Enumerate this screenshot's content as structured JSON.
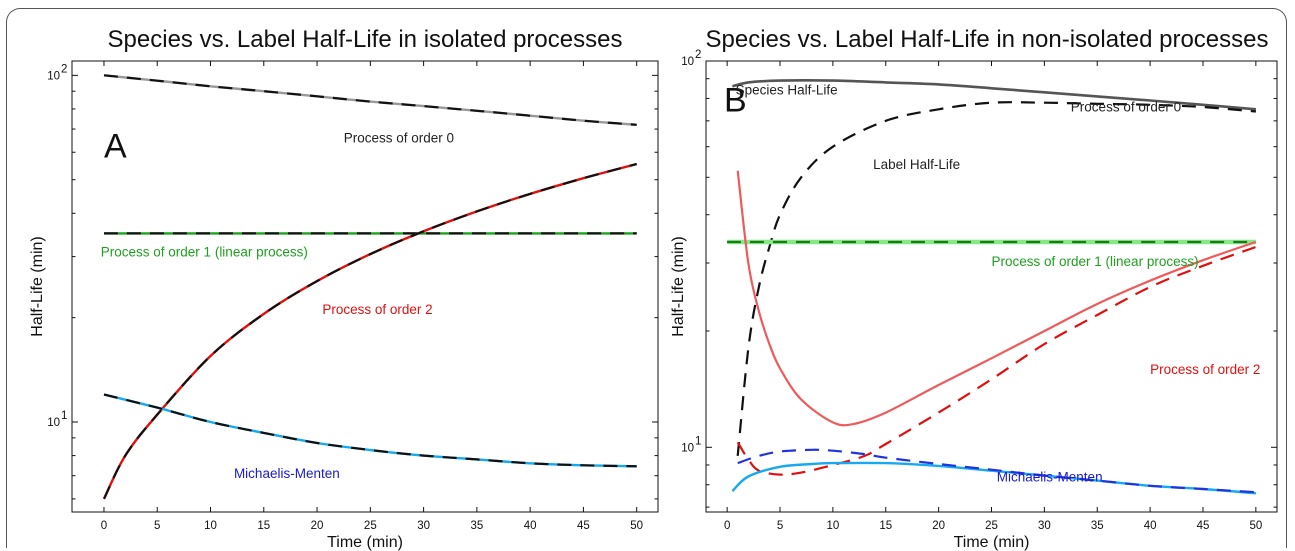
{
  "chart_data": [
    {
      "type": "line",
      "panel": "A",
      "title": "Species vs. Label Half-Life in isolated processes",
      "xlabel": "Time (min)",
      "ylabel": "Half-Life (min)",
      "xlim": [
        -3,
        52
      ],
      "ylim": [
        5.5,
        110
      ],
      "yscale": "log",
      "xticks": [
        0,
        5,
        10,
        15,
        20,
        25,
        30,
        35,
        40,
        45,
        50
      ],
      "yticks": [
        {
          "value": 10,
          "label": "10",
          "exp": "1"
        },
        {
          "value": 100,
          "label": "10",
          "exp": "2"
        }
      ],
      "series": [
        {
          "key": "o0_species",
          "color": "#999999",
          "dash": "",
          "width": 2.4,
          "x": [
            0,
            5,
            10,
            15,
            20,
            25,
            30,
            35,
            40,
            45,
            50
          ],
          "y": [
            100,
            96.5,
            93,
            90,
            87,
            84,
            81.5,
            79,
            76.5,
            74,
            72
          ]
        },
        {
          "key": "o0_label",
          "color": "#111111",
          "dash": "14,9",
          "width": 2.2,
          "x": [
            0,
            5,
            10,
            15,
            20,
            25,
            30,
            35,
            40,
            45,
            50
          ],
          "y": [
            100,
            96.5,
            93,
            90,
            87,
            84,
            81.5,
            79,
            76.5,
            74,
            72
          ]
        },
        {
          "key": "o1_species",
          "color": "#1fa01f",
          "dash": "",
          "width": 2.4,
          "x": [
            0,
            50
          ],
          "y": [
            35,
            35
          ]
        },
        {
          "key": "o1_label",
          "color": "#111111",
          "dash": "14,9",
          "width": 2.2,
          "x": [
            0,
            50
          ],
          "y": [
            35,
            35
          ]
        },
        {
          "key": "o2_species",
          "color": "#e01010",
          "dash": "",
          "width": 2.4,
          "x": [
            0,
            2,
            5,
            10,
            15,
            20,
            25,
            30,
            35,
            40,
            45,
            50
          ],
          "y": [
            6.0,
            8.0,
            10.5,
            15.5,
            20.5,
            25.5,
            30.5,
            35.5,
            40.5,
            45.5,
            50.5,
            55.5
          ]
        },
        {
          "key": "o2_label",
          "color": "#111111",
          "dash": "14,9",
          "width": 2.2,
          "x": [
            0,
            2,
            5,
            10,
            15,
            20,
            25,
            30,
            35,
            40,
            45,
            50
          ],
          "y": [
            6.0,
            8.0,
            10.5,
            15.5,
            20.5,
            25.5,
            30.5,
            35.5,
            40.5,
            45.5,
            50.5,
            55.5
          ]
        },
        {
          "key": "mm_species",
          "color": "#17a9f0",
          "dash": "",
          "width": 2.4,
          "x": [
            0,
            5,
            10,
            15,
            20,
            25,
            30,
            35,
            40,
            45,
            50
          ],
          "y": [
            12.0,
            11.0,
            10.0,
            9.3,
            8.7,
            8.3,
            8.0,
            7.8,
            7.6,
            7.5,
            7.45
          ]
        },
        {
          "key": "mm_label",
          "color": "#111111",
          "dash": "14,9",
          "width": 2.2,
          "x": [
            0,
            5,
            10,
            15,
            20,
            25,
            30,
            35,
            40,
            45,
            50
          ],
          "y": [
            12.0,
            11.0,
            10.0,
            9.3,
            8.7,
            8.3,
            8.0,
            7.8,
            7.6,
            7.5,
            7.45
          ]
        }
      ],
      "annotations": [
        {
          "text": "A",
          "x": 0,
          "y": 58,
          "style": "letter",
          "color": "#111111"
        },
        {
          "text": "Process of order 0",
          "x": 22.5,
          "y": 64,
          "color": "#222222"
        },
        {
          "text": "Process of order 1 (linear process)",
          "x": -0.3,
          "y": 30,
          "color": "#1fa01f"
        },
        {
          "text": "Process of order 2",
          "x": 20.5,
          "y": 20.5,
          "color": "#e01010"
        },
        {
          "text": "Michaelis-Menten",
          "x": 12.2,
          "y": 6.9,
          "color": "#1a1ad0"
        }
      ]
    },
    {
      "type": "line",
      "panel": "B",
      "title": "Species vs. Label Half-Life in non-isolated processes",
      "xlabel": "Time (min)",
      "ylabel": "Half-Life (min)",
      "xlim": [
        -2,
        52
      ],
      "ylim": [
        6.8,
        100
      ],
      "yscale": "log",
      "xticks": [
        0,
        5,
        10,
        15,
        20,
        25,
        30,
        35,
        40,
        45,
        50
      ],
      "yticks": [
        {
          "value": 10,
          "label": "10",
          "exp": "1"
        },
        {
          "value": 100,
          "label": "10",
          "exp": "2"
        }
      ],
      "series": [
        {
          "key": "o0_species",
          "color": "#555555",
          "dash": "",
          "width": 2.6,
          "x": [
            0.5,
            2,
            5,
            10,
            15,
            20,
            25,
            30,
            35,
            40,
            45,
            50
          ],
          "y": [
            86,
            88,
            89,
            89,
            88,
            87,
            85,
            83,
            81,
            79,
            77,
            75
          ]
        },
        {
          "key": "o0_label",
          "color": "#111111",
          "dash": "14,9",
          "width": 2.2,
          "x": [
            1,
            2,
            3,
            4,
            5,
            7,
            10,
            15,
            20,
            25,
            30,
            35,
            40,
            45,
            50
          ],
          "y": [
            9.5,
            18,
            26,
            33,
            40,
            50,
            60,
            70,
            75,
            78,
            78,
            77.5,
            77,
            76,
            74
          ]
        },
        {
          "key": "o1_species",
          "color": "#88e888",
          "dash": "",
          "width": 4.5,
          "x": [
            0,
            50
          ],
          "y": [
            34,
            34
          ]
        },
        {
          "key": "o1_label",
          "color": "#1a7a1a",
          "dash": "14,9",
          "width": 2.2,
          "x": [
            0,
            50
          ],
          "y": [
            34,
            34
          ]
        },
        {
          "key": "o2_species",
          "color": "#ef5a5a",
          "dash": "",
          "width": 2.2,
          "x": [
            1,
            2,
            3,
            4,
            5,
            7,
            10,
            12,
            15,
            20,
            25,
            30,
            35,
            40,
            45,
            50
          ],
          "y": [
            52,
            30,
            22.5,
            18.5,
            16,
            13.3,
            11.6,
            11.5,
            12.3,
            14.5,
            17,
            20,
            23.5,
            27,
            30.5,
            34
          ]
        },
        {
          "key": "o2_label",
          "color": "#e01010",
          "dash": "14,9",
          "width": 2.2,
          "x": [
            1,
            2,
            3,
            5,
            7,
            10,
            13,
            15,
            20,
            25,
            30,
            35,
            40,
            45,
            50
          ],
          "y": [
            10.3,
            9.3,
            8.7,
            8.5,
            8.6,
            9.0,
            9.5,
            10.2,
            12.3,
            15,
            18.5,
            22,
            26,
            29.5,
            33
          ]
        },
        {
          "key": "mm_species",
          "color": "#17a9f0",
          "dash": "",
          "width": 2.4,
          "x": [
            0.5,
            2,
            5,
            8,
            10,
            15,
            20,
            25,
            30,
            35,
            40,
            45,
            50
          ],
          "y": [
            7.7,
            8.4,
            8.9,
            9.05,
            9.1,
            9.1,
            8.95,
            8.7,
            8.45,
            8.2,
            7.95,
            7.8,
            7.6
          ]
        },
        {
          "key": "mm_label",
          "color": "#2233dd",
          "dash": "14,9",
          "width": 2.2,
          "x": [
            1,
            3,
            5,
            8,
            10,
            13,
            15,
            20,
            25,
            30,
            35,
            40,
            45,
            50
          ],
          "y": [
            9.1,
            9.5,
            9.75,
            9.85,
            9.8,
            9.6,
            9.4,
            9.05,
            8.75,
            8.45,
            8.2,
            7.95,
            7.8,
            7.65
          ]
        }
      ],
      "annotations": [
        {
          "text": "B",
          "x": -0.3,
          "y": 74,
          "style": "letter",
          "color": "#111111"
        },
        {
          "text": "Species Half-Life",
          "x": 0.8,
          "y": 82,
          "color": "#222222"
        },
        {
          "text": "Process of order 0",
          "x": 32.5,
          "y": 74,
          "color": "#222222"
        },
        {
          "text": "Label Half-Life",
          "x": 13.8,
          "y": 52.5,
          "color": "#222222"
        },
        {
          "text": "Process of order 1 (linear process)",
          "x": 25,
          "y": 29.5,
          "color": "#1fa01f"
        },
        {
          "text": "Process of order 2",
          "x": 40,
          "y": 15.5,
          "color": "#e01010"
        },
        {
          "text": "Michaelis-Menten",
          "x": 25.5,
          "y": 8.15,
          "color": "#1a1ad0"
        }
      ]
    }
  ]
}
